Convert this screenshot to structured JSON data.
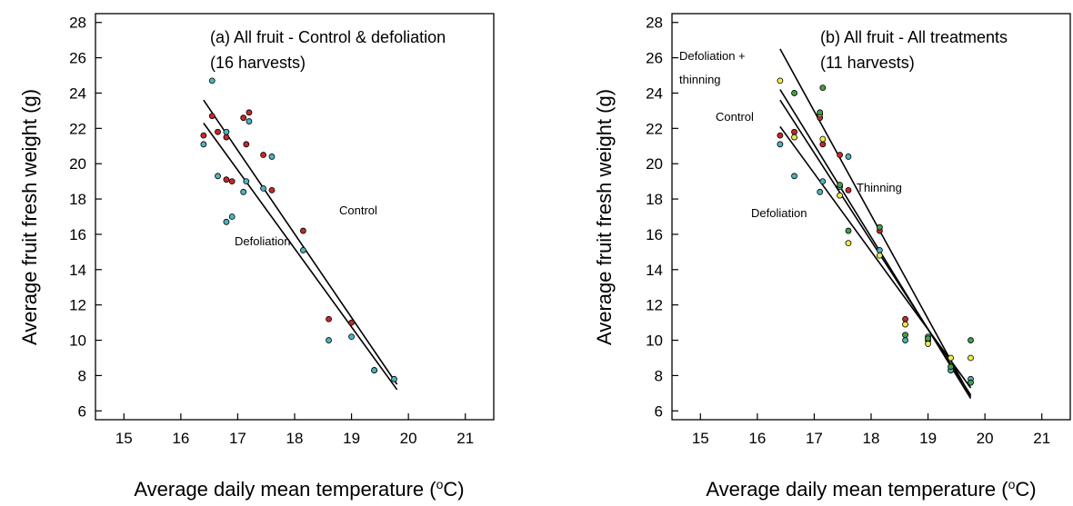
{
  "colors": {
    "control": "#c62828",
    "defoliation": "#4fb3bf",
    "thinning": "#f2ea4a",
    "defoliation_thinning": "#43a047",
    "line": "#000000"
  },
  "chart_data": [
    {
      "type": "scatter",
      "title": "(a) All fruit - Control & defoliation",
      "subtitle": "(16 harvests)",
      "xlabel": "Average daily mean temperature (",
      "xlabel_sup": "o",
      "xlabel_end": "C)",
      "ylabel": "Average fruit fresh weight (g)",
      "xlim": [
        14.5,
        21.5
      ],
      "ylim": [
        5.5,
        28.5
      ],
      "xticks": [
        15,
        16,
        17,
        18,
        19,
        20,
        21
      ],
      "yticks": [
        6,
        8,
        10,
        12,
        14,
        16,
        18,
        20,
        22,
        24,
        26,
        28
      ],
      "series": [
        {
          "color_key": "control",
          "points": [
            [
              16.4,
              21.6
            ],
            [
              16.55,
              22.7
            ],
            [
              16.65,
              21.8
            ],
            [
              16.8,
              21.5
            ],
            [
              16.8,
              19.1
            ],
            [
              16.9,
              19.0
            ],
            [
              17.1,
              22.6
            ],
            [
              17.15,
              21.1
            ],
            [
              17.2,
              22.9
            ],
            [
              17.45,
              20.5
            ],
            [
              17.6,
              18.5
            ],
            [
              18.15,
              16.2
            ],
            [
              18.6,
              11.2
            ],
            [
              19.0,
              11.0
            ],
            [
              19.4,
              8.3
            ]
          ],
          "fit": [
            [
              16.4,
              22.3
            ],
            [
              19.8,
              7.2
            ]
          ]
        },
        {
          "color_key": "defoliation",
          "points": [
            [
              16.4,
              21.1
            ],
            [
              16.55,
              24.7
            ],
            [
              16.65,
              19.3
            ],
            [
              16.8,
              21.8
            ],
            [
              16.8,
              16.7
            ],
            [
              16.9,
              17.0
            ],
            [
              17.1,
              18.4
            ],
            [
              17.15,
              19.0
            ],
            [
              17.2,
              22.4
            ],
            [
              17.45,
              18.6
            ],
            [
              17.6,
              20.4
            ],
            [
              18.15,
              15.1
            ],
            [
              18.6,
              10.0
            ],
            [
              19.0,
              10.2
            ],
            [
              19.4,
              8.3
            ],
            [
              19.75,
              7.8
            ]
          ],
          "fit": [
            [
              16.4,
              23.6
            ],
            [
              19.8,
              7.5
            ]
          ]
        }
      ],
      "annotations": [
        "Control",
        "Defoliation"
      ]
    },
    {
      "type": "scatter",
      "title": "(b) All fruit - All treatments",
      "subtitle": "(11 harvests)",
      "xlabel": "Average daily mean temperature (",
      "xlabel_sup": "o",
      "xlabel_end": "C)",
      "ylabel": "Average fruit fresh weight (g)",
      "xlim": [
        14.5,
        21.5
      ],
      "ylim": [
        5.5,
        28.5
      ],
      "xticks": [
        15,
        16,
        17,
        18,
        19,
        20,
        21
      ],
      "yticks": [
        6,
        8,
        10,
        12,
        14,
        16,
        18,
        20,
        22,
        24,
        26,
        28
      ],
      "series": [
        {
          "color_key": "control",
          "points": [
            [
              16.4,
              21.6
            ],
            [
              16.65,
              21.8
            ],
            [
              17.1,
              22.6
            ],
            [
              17.15,
              21.1
            ],
            [
              17.45,
              20.5
            ],
            [
              17.6,
              18.5
            ],
            [
              18.15,
              16.2
            ],
            [
              18.6,
              11.2
            ],
            [
              19.0,
              10.0
            ],
            [
              19.4,
              8.3
            ]
          ],
          "fit": [
            [
              16.4,
              23.6
            ],
            [
              19.75,
              6.9
            ]
          ]
        },
        {
          "color_key": "defoliation",
          "points": [
            [
              16.4,
              21.1
            ],
            [
              16.65,
              19.3
            ],
            [
              17.1,
              18.4
            ],
            [
              17.15,
              19.0
            ],
            [
              17.45,
              18.7
            ],
            [
              17.6,
              20.4
            ],
            [
              18.15,
              15.1
            ],
            [
              18.6,
              10.0
            ],
            [
              19.0,
              10.2
            ],
            [
              19.4,
              8.3
            ],
            [
              19.75,
              7.8
            ]
          ],
          "fit": [
            [
              16.4,
              22.1
            ],
            [
              19.75,
              7.3
            ]
          ]
        },
        {
          "color_key": "thinning",
          "points": [
            [
              16.4,
              24.7
            ],
            [
              16.65,
              21.5
            ],
            [
              17.1,
              22.8
            ],
            [
              17.15,
              21.4
            ],
            [
              17.45,
              18.2
            ],
            [
              17.6,
              15.5
            ],
            [
              18.15,
              14.8
            ],
            [
              18.6,
              10.9
            ],
            [
              19.0,
              9.8
            ],
            [
              19.4,
              9.0
            ],
            [
              19.75,
              9.0
            ]
          ],
          "fit": [
            [
              16.4,
              24.2
            ],
            [
              19.75,
              6.7
            ]
          ]
        },
        {
          "color_key": "defoliation_thinning",
          "points": [
            [
              16.65,
              24.0
            ],
            [
              17.1,
              22.9
            ],
            [
              17.15,
              24.3
            ],
            [
              17.45,
              18.8
            ],
            [
              17.6,
              16.2
            ],
            [
              18.15,
              16.4
            ],
            [
              18.6,
              10.3
            ],
            [
              19.0,
              10.1
            ],
            [
              19.4,
              8.5
            ],
            [
              19.75,
              10.0
            ],
            [
              19.75,
              7.6
            ]
          ],
          "fit": [
            [
              16.4,
              26.5
            ],
            [
              19.75,
              6.8
            ]
          ]
        }
      ],
      "annotations": [
        "Defoliation +",
        "thinning",
        "Control",
        "Thinning",
        "Defoliation"
      ]
    }
  ]
}
